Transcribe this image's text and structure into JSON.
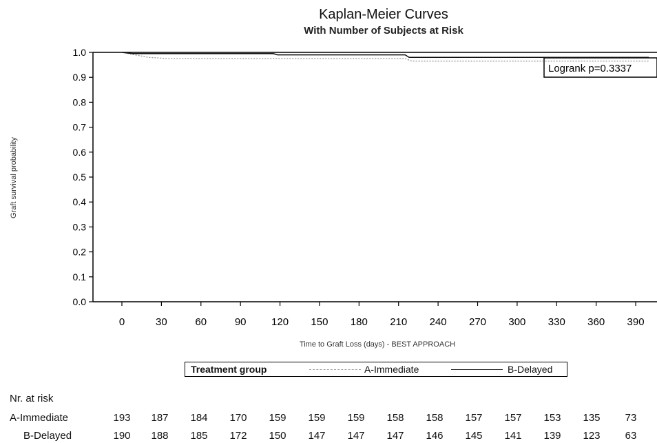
{
  "chart_data": {
    "type": "line",
    "title": "Kaplan-Meier Curves",
    "subtitle": "With Number of Subjects at Risk",
    "xlabel": "Time to Graft Loss (days) - BEST APPROACH",
    "ylabel": "Graft survival probability",
    "xlim": [
      -20,
      400
    ],
    "ylim": [
      0.0,
      1.0
    ],
    "x_ticks": [
      0,
      30,
      60,
      90,
      120,
      150,
      180,
      210,
      240,
      270,
      300,
      330,
      360,
      390
    ],
    "y_ticks": [
      "0.0",
      "0.1",
      "0.2",
      "0.3",
      "0.4",
      "0.5",
      "0.6",
      "0.7",
      "0.8",
      "0.9",
      "1.0"
    ],
    "annotation": "Logrank p=0.3337",
    "legend_title": "Treatment group",
    "legend_position": "bottom",
    "series": [
      {
        "name": "A-Immediate",
        "style": "dotted-gray",
        "color": "#9a9a9a",
        "points": [
          [
            0,
            1.0
          ],
          [
            5,
            0.995
          ],
          [
            20,
            0.98
          ],
          [
            35,
            0.975
          ],
          [
            215,
            0.975
          ],
          [
            220,
            0.965
          ],
          [
            400,
            0.965
          ]
        ]
      },
      {
        "name": "B-Delayed",
        "style": "solid-black",
        "color": "#111111",
        "points": [
          [
            0,
            1.0
          ],
          [
            8,
            0.995
          ],
          [
            115,
            0.995
          ],
          [
            118,
            0.99
          ],
          [
            215,
            0.99
          ],
          [
            218,
            0.98
          ],
          [
            400,
            0.98
          ]
        ]
      }
    ]
  },
  "risk_table": {
    "title": "Nr. at risk",
    "rows": [
      {
        "label": "A-Immediate",
        "values": [
          "193",
          "187",
          "184",
          "170",
          "159",
          "159",
          "159",
          "158",
          "158",
          "157",
          "157",
          "153",
          "135",
          "73"
        ]
      },
      {
        "label": "B-Delayed",
        "values": [
          "190",
          "188",
          "185",
          "172",
          "150",
          "147",
          "147",
          "147",
          "146",
          "145",
          "141",
          "139",
          "123",
          "63"
        ]
      }
    ]
  }
}
